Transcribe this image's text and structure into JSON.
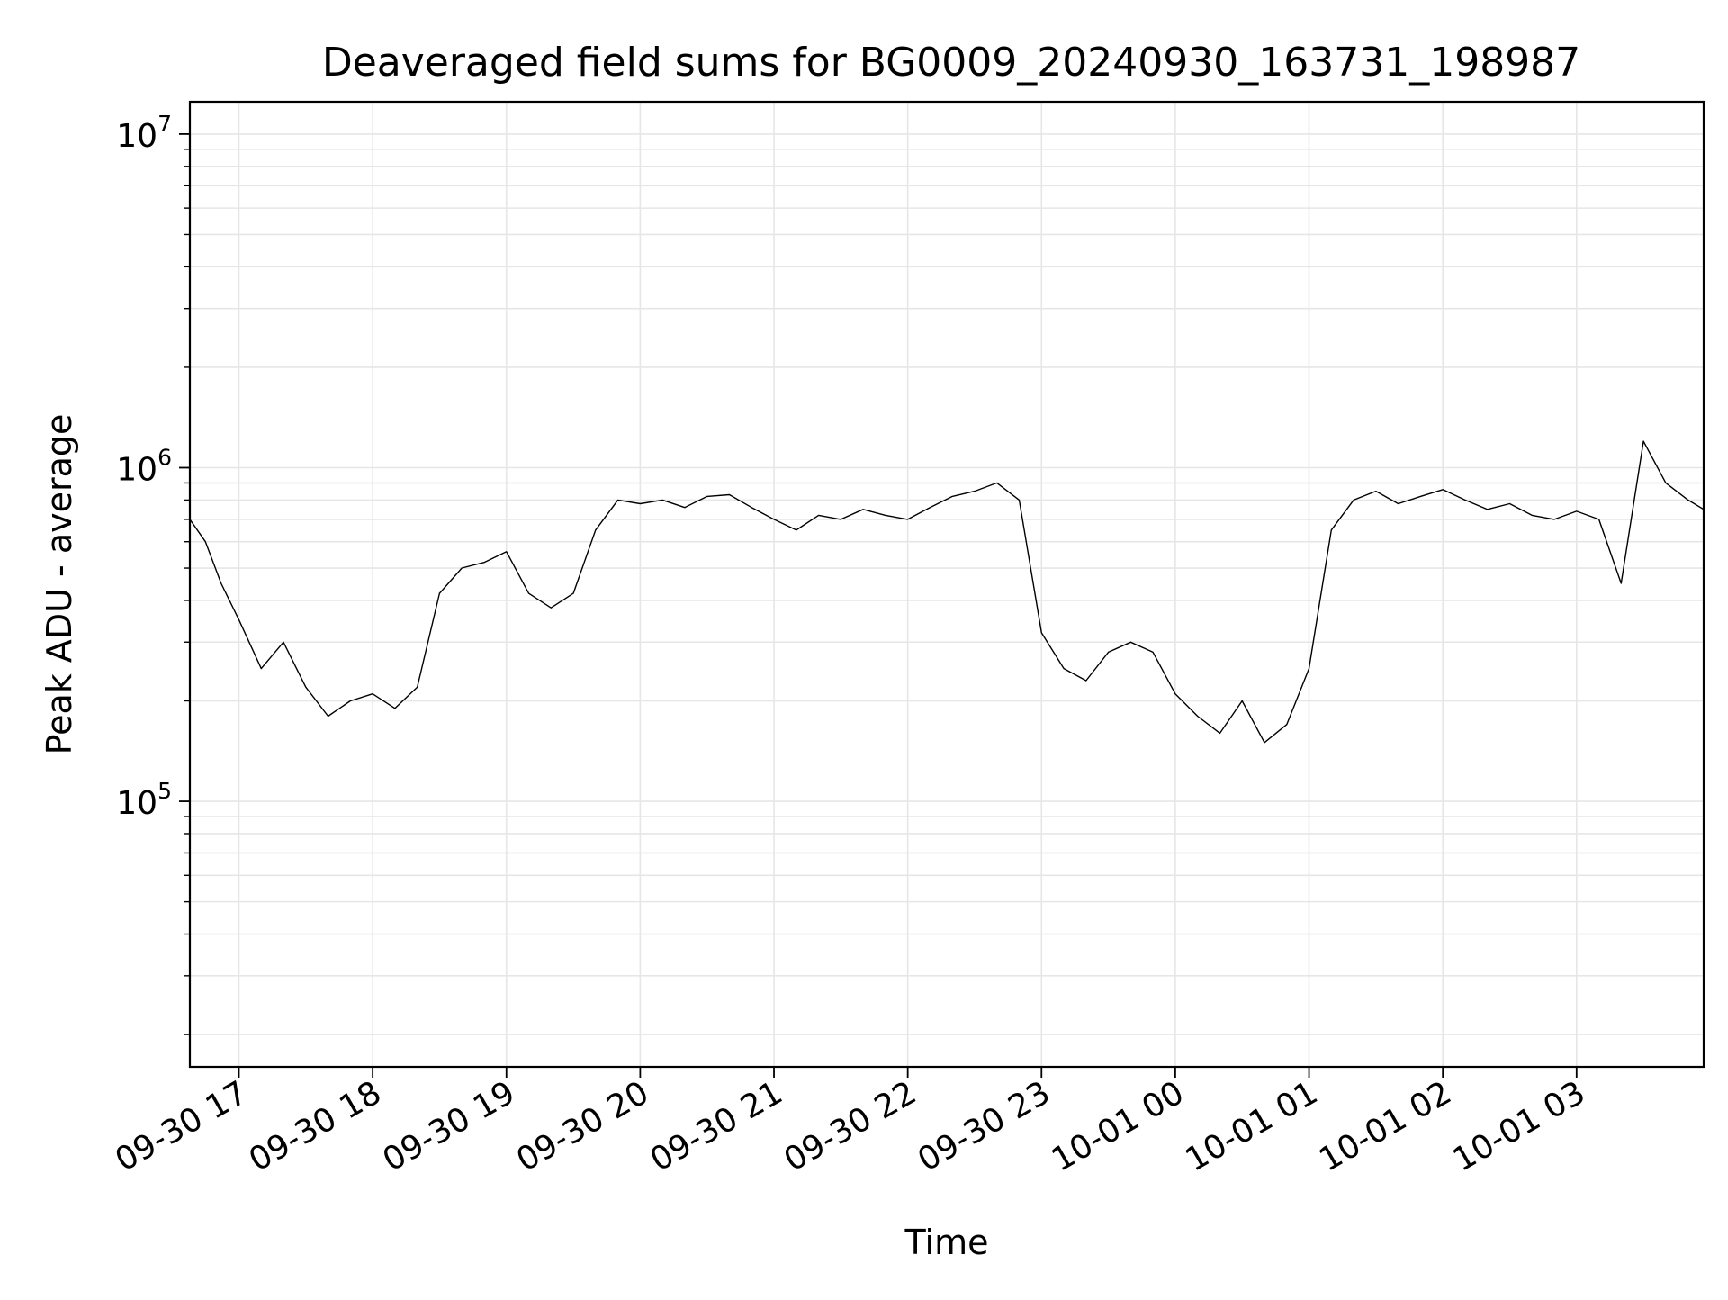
{
  "chart_data": {
    "type": "line",
    "title": "Deaveraged field sums for BG0009_20240930_163731_198987",
    "xlabel": "Time",
    "ylabel": "Peak ADU - average",
    "yscale": "log",
    "xlim": [
      "2024-09-30 16:38",
      "2024-10-01 03:57"
    ],
    "ylim": [
      16000,
      12500000
    ],
    "grid": true,
    "x_ticks": [
      "09-30 17",
      "09-30 18",
      "09-30 19",
      "09-30 20",
      "09-30 21",
      "09-30 22",
      "09-30 23",
      "10-01 00",
      "10-01 01",
      "10-01 02",
      "10-01 03"
    ],
    "y_ticks": [
      {
        "base": "10",
        "exp": "5",
        "value": 100000
      },
      {
        "base": "10",
        "exp": "6",
        "value": 1000000
      },
      {
        "base": "10",
        "exp": "7",
        "value": 10000000
      }
    ],
    "series": [
      {
        "color": "#000000",
        "x": [
          "2024-09-30 16:38",
          "2024-09-30 16:45",
          "2024-09-30 16:52",
          "2024-09-30 17:00",
          "2024-09-30 17:10",
          "2024-09-30 17:20",
          "2024-09-30 17:30",
          "2024-09-30 17:40",
          "2024-09-30 17:50",
          "2024-09-30 18:00",
          "2024-09-30 18:10",
          "2024-09-30 18:20",
          "2024-09-30 18:30",
          "2024-09-30 18:40",
          "2024-09-30 18:50",
          "2024-09-30 19:00",
          "2024-09-30 19:10",
          "2024-09-30 19:20",
          "2024-09-30 19:30",
          "2024-09-30 19:40",
          "2024-09-30 19:50",
          "2024-09-30 20:00",
          "2024-09-30 20:10",
          "2024-09-30 20:20",
          "2024-09-30 20:30",
          "2024-09-30 20:40",
          "2024-09-30 20:50",
          "2024-09-30 21:00",
          "2024-09-30 21:10",
          "2024-09-30 21:20",
          "2024-09-30 21:30",
          "2024-09-30 21:40",
          "2024-09-30 21:50",
          "2024-09-30 22:00",
          "2024-09-30 22:10",
          "2024-09-30 22:20",
          "2024-09-30 22:30",
          "2024-09-30 22:40",
          "2024-09-30 22:50",
          "2024-09-30 23:00",
          "2024-09-30 23:10",
          "2024-09-30 23:20",
          "2024-09-30 23:30",
          "2024-09-30 23:40",
          "2024-09-30 23:50",
          "2024-10-01 00:00",
          "2024-10-01 00:10",
          "2024-10-01 00:20",
          "2024-10-01 00:30",
          "2024-10-01 00:40",
          "2024-10-01 00:50",
          "2024-10-01 01:00",
          "2024-10-01 01:10",
          "2024-10-01 01:20",
          "2024-10-01 01:30",
          "2024-10-01 01:40",
          "2024-10-01 01:50",
          "2024-10-01 02:00",
          "2024-10-01 02:10",
          "2024-10-01 02:20",
          "2024-10-01 02:30",
          "2024-10-01 02:40",
          "2024-10-01 02:50",
          "2024-10-01 03:00",
          "2024-10-01 03:10",
          "2024-10-01 03:20",
          "2024-10-01 03:30",
          "2024-10-01 03:40",
          "2024-10-01 03:50",
          "2024-10-01 03:57"
        ],
        "values": [
          700000,
          600000,
          450000,
          350000,
          250000,
          300000,
          220000,
          180000,
          200000,
          210000,
          190000,
          220000,
          420000,
          500000,
          520000,
          560000,
          420000,
          380000,
          420000,
          650000,
          800000,
          780000,
          800000,
          760000,
          820000,
          830000,
          760000,
          700000,
          650000,
          720000,
          700000,
          750000,
          720000,
          700000,
          760000,
          820000,
          850000,
          900000,
          800000,
          320000,
          250000,
          230000,
          280000,
          300000,
          280000,
          210000,
          180000,
          160000,
          200000,
          150000,
          170000,
          250000,
          650000,
          800000,
          850000,
          780000,
          820000,
          860000,
          800000,
          750000,
          780000,
          720000,
          700000,
          740000,
          700000,
          450000,
          1200000,
          900000,
          800000,
          750000
        ]
      }
    ]
  }
}
